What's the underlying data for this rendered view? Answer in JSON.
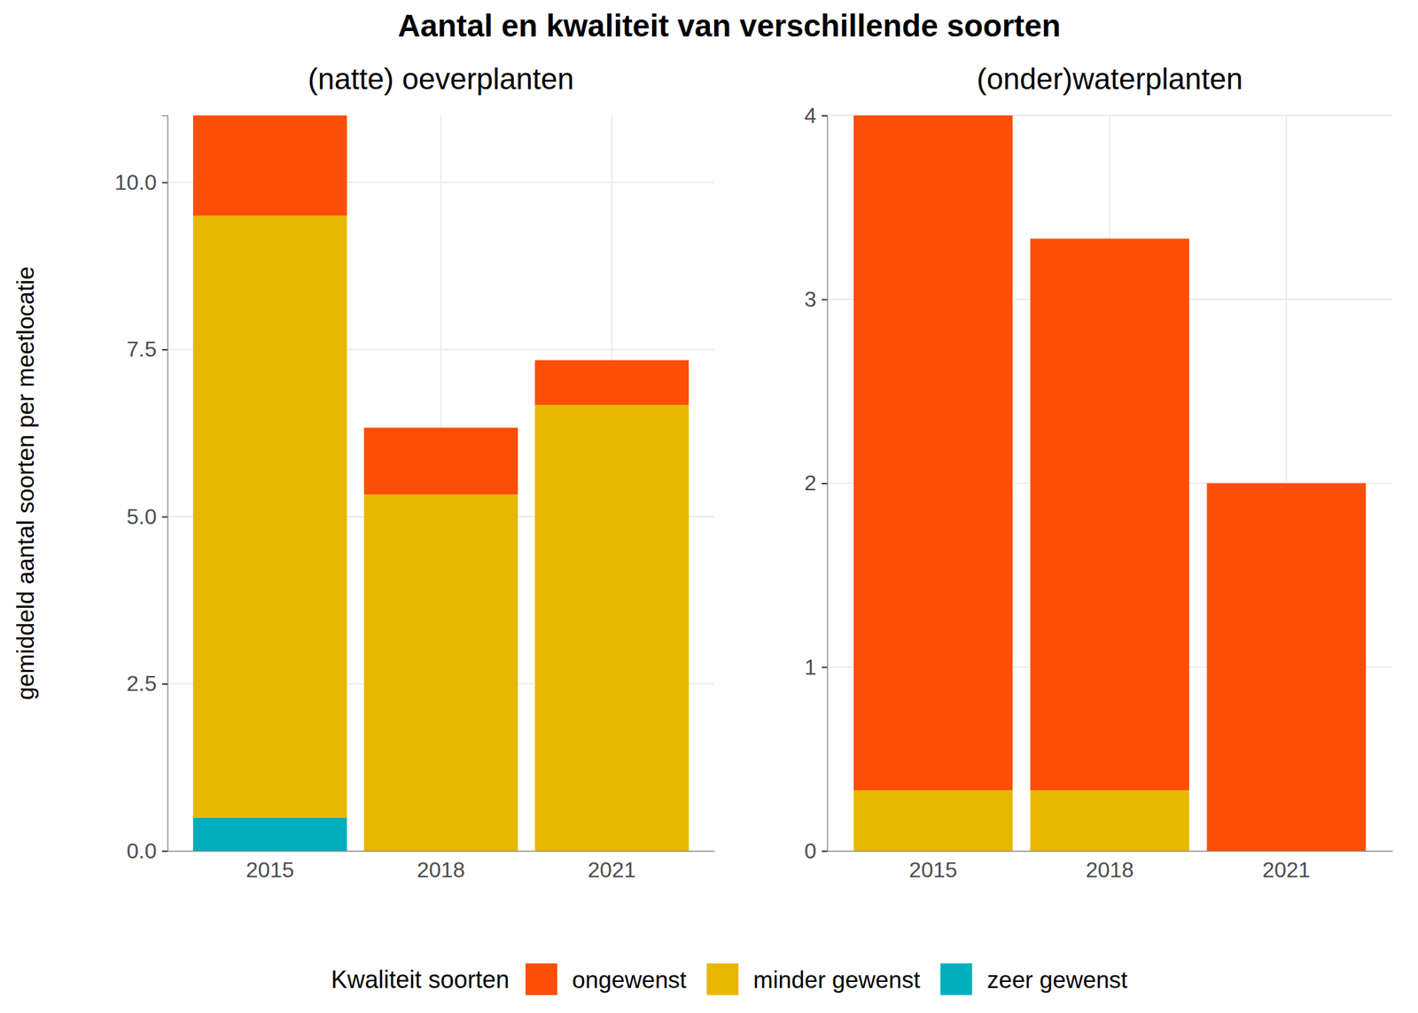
{
  "chart_data": {
    "type": "bar",
    "title": "Aantal en kwaliteit van verschillende soorten",
    "y_label": "gemiddeld aantal soorten per meetlocatie",
    "stacked": true,
    "grid": true,
    "legend": "bottom",
    "legend_title": "Kwaliteit soorten",
    "panels": [
      {
        "subtitle": "(natte) oeverplanten",
        "categories": [
          "2015",
          "2018",
          "2021"
        ],
        "series": [
          {
            "name": "zeer gewenst",
            "color": "#00AFBB",
            "values": [
              0.5,
              0,
              0
            ]
          },
          {
            "name": "minder gewenst",
            "color": "#E7B800",
            "values": [
              9.0,
              5.33,
              6.67
            ]
          },
          {
            "name": "ongewenst",
            "color": "#FC4E07",
            "values": [
              1.5,
              1.0,
              0.67
            ]
          }
        ],
        "ylim": [
          0,
          11
        ],
        "yticks": [
          {
            "value": 0,
            "label": "0.0"
          },
          2.5,
          {
            "value": 5,
            "label": "5.0"
          },
          7.5,
          {
            "value": 10,
            "label": "10.0"
          }
        ]
      },
      {
        "subtitle": "(onder)waterplanten",
        "categories": [
          "2015",
          "2018",
          "2021"
        ],
        "series": [
          {
            "name": "minder gewenst",
            "color": "#E7B800",
            "values": [
              0.33,
              0.33,
              0
            ]
          },
          {
            "name": "ongewenst",
            "color": "#FC4E07",
            "values": [
              3.67,
              3.0,
              2.0
            ]
          }
        ],
        "ylim": [
          0,
          4
        ],
        "yticks": [
          0,
          1,
          2,
          3,
          4
        ]
      }
    ]
  }
}
